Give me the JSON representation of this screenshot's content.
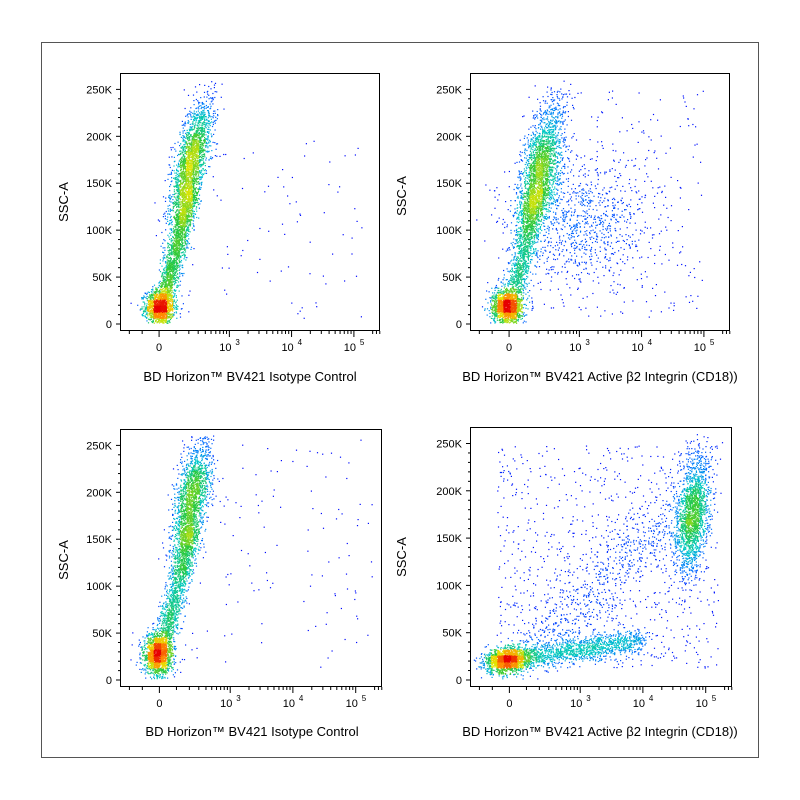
{
  "chart_data": [
    {
      "type": "scatter",
      "panel": "top-left",
      "xlabel": "BD Horizon™ BV421 Isotype Control",
      "ylabel": "SSC-A",
      "x_scale": "biexponential",
      "x_tick_labels": [
        "0",
        "10",
        "10",
        "10"
      ],
      "x_tick_exponents": [
        "",
        "3",
        "4",
        "5"
      ],
      "x_ticks": [
        0,
        1000,
        10000,
        100000
      ],
      "y_tick_labels": [
        "0",
        "50K",
        "100K",
        "150K",
        "200K",
        "250K"
      ],
      "y_ticks": [
        0,
        50000,
        100000,
        150000,
        200000,
        250000
      ],
      "ylim": [
        0,
        262144
      ],
      "grid": false,
      "color_map": "density: blue to green to yellow to red",
      "populations": [
        {
          "description": "dense low cluster",
          "x_center": 0,
          "y_center": 18000,
          "events": 1400
        },
        {
          "description": "diagonal band",
          "x_center": 150,
          "y_center": 60000,
          "events": 1600
        },
        {
          "description": "upper high-SSC cluster",
          "x_center": 250,
          "y_center": 165000,
          "events": 2200
        }
      ]
    },
    {
      "type": "scatter",
      "panel": "top-right",
      "xlabel": "BD Horizon™ BV421 Active β2 Integrin (CD18))",
      "ylabel": "SSC-A",
      "x_scale": "biexponential",
      "x_tick_labels": [
        "0",
        "10",
        "10",
        "10"
      ],
      "x_tick_exponents": [
        "",
        "3",
        "4",
        "5"
      ],
      "x_ticks": [
        0,
        1000,
        10000,
        100000
      ],
      "y_tick_labels": [
        "0",
        "50K",
        "100K",
        "150K",
        "200K",
        "250K"
      ],
      "y_ticks": [
        0,
        50000,
        100000,
        150000,
        200000,
        250000
      ],
      "ylim": [
        0,
        262144
      ],
      "grid": false,
      "color_map": "density: blue to green to yellow to red",
      "populations": [
        {
          "description": "dense low cluster",
          "x_center": 0,
          "y_center": 18000,
          "events": 1400
        },
        {
          "description": "diagonal band",
          "x_center": 150,
          "y_center": 70000,
          "events": 1200
        },
        {
          "description": "upper high-SSC cluster",
          "x_center": 250,
          "y_center": 165000,
          "events": 2200
        },
        {
          "description": "right-shifted scattered events",
          "x_center": 3000,
          "y_center": 110000,
          "events": 1100
        }
      ]
    },
    {
      "type": "scatter",
      "panel": "bottom-left",
      "xlabel": "BD Horizon™ BV421 Isotype Control",
      "ylabel": "SSC-A",
      "x_scale": "biexponential",
      "x_tick_labels": [
        "0",
        "10",
        "10",
        "10"
      ],
      "x_tick_exponents": [
        "",
        "3",
        "4",
        "5"
      ],
      "x_ticks": [
        0,
        1000,
        10000,
        100000
      ],
      "y_tick_labels": [
        "0",
        "50K",
        "100K",
        "150K",
        "200K",
        "250K"
      ],
      "y_ticks": [
        0,
        50000,
        100000,
        150000,
        200000,
        250000
      ],
      "ylim": [
        0,
        262144
      ],
      "grid": false,
      "color_map": "density: blue to green to yellow to red",
      "populations": [
        {
          "description": "dense low cluster",
          "x_center": 0,
          "y_center": 25000,
          "events": 1500
        },
        {
          "description": "diagonal band",
          "x_center": 150,
          "y_center": 80000,
          "events": 1500
        },
        {
          "description": "upper high-SSC cluster",
          "x_center": 250,
          "y_center": 190000,
          "events": 1800
        }
      ]
    },
    {
      "type": "scatter",
      "panel": "bottom-right",
      "xlabel": "BD Horizon™ BV421 Active β2 Integrin (CD18))",
      "ylabel": "SSC-A",
      "x_scale": "biexponential",
      "x_tick_labels": [
        "0",
        "10",
        "10",
        "10"
      ],
      "x_tick_exponents": [
        "",
        "3",
        "4",
        "5"
      ],
      "x_ticks": [
        0,
        1000,
        10000,
        100000
      ],
      "y_tick_labels": [
        "0",
        "50K",
        "100K",
        "150K",
        "200K",
        "250K"
      ],
      "y_ticks": [
        0,
        50000,
        100000,
        150000,
        200000,
        250000
      ],
      "ylim": [
        0,
        262144
      ],
      "grid": false,
      "color_map": "density: blue to green to yellow to red",
      "populations": [
        {
          "description": "dense low cluster",
          "x_center": 50,
          "y_center": 22000,
          "events": 1400
        },
        {
          "description": "low-SSC horizontal band",
          "x_center": 2000,
          "y_center": 30000,
          "events": 1400
        },
        {
          "description": "upper high-SSC cluster",
          "x_center": 30000,
          "y_center": 180000,
          "events": 1800
        },
        {
          "description": "diffuse mid events",
          "x_center": 5000,
          "y_center": 100000,
          "events": 1500
        }
      ]
    }
  ]
}
